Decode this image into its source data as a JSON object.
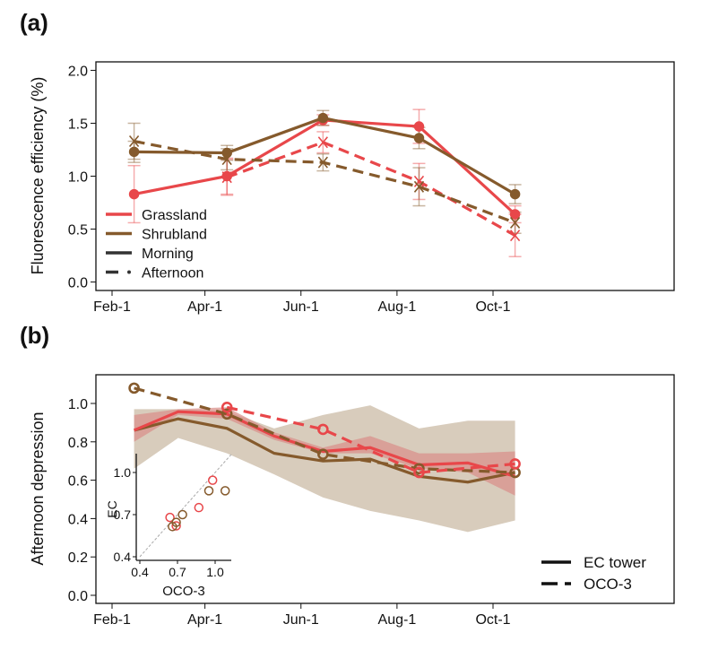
{
  "colors": {
    "grassland": "#E8474A",
    "shrubland": "#855A2C",
    "band_shrub": "#D8CCBC",
    "band_grass": "#D9928C",
    "one_to_one": "#AAAAAA"
  },
  "chart_data": [
    {
      "panel_label": "(a)",
      "type": "line",
      "ylabel": "Fluorescence efficiency (%)",
      "xlabel": "",
      "x_ticks": [
        "Feb-1",
        "Apr-1",
        "Jun-1",
        "Aug-1",
        "Oct-1"
      ],
      "y_ticks": [
        "0.0",
        "0.5",
        "1.0",
        "1.5",
        "2.0"
      ],
      "ylim": [
        -0.08,
        2.08
      ],
      "grid": false,
      "legend_position": "bottom-left",
      "legend": [
        {
          "label": "Grassland",
          "style": "solid",
          "color": "grassland"
        },
        {
          "label": "Shrubland",
          "style": "solid",
          "color": "shrubland"
        },
        {
          "label": "Morning",
          "style": "solid",
          "color": "dark"
        },
        {
          "label": "Afternoon",
          "style": "dashed",
          "color": "dark"
        }
      ],
      "series": [
        {
          "land": "grassland",
          "time": "Morning",
          "marker": "circle",
          "x": [
            "Feb-15",
            "Apr-15",
            "Jun-15",
            "Aug-15",
            "Oct-15"
          ],
          "y": [
            0.83,
            1.0,
            1.53,
            1.47,
            0.64
          ],
          "err": [
            0.27,
            0.17,
            0.05,
            0.16,
            0.08
          ]
        },
        {
          "land": "shrubland",
          "time": "Morning",
          "marker": "circle",
          "x": [
            "Feb-15",
            "Apr-15",
            "Jun-15",
            "Aug-15",
            "Oct-15"
          ],
          "y": [
            1.23,
            1.22,
            1.55,
            1.36,
            0.83
          ],
          "err": [
            0.1,
            0.07,
            0.07,
            0.1,
            0.09
          ]
        },
        {
          "land": "grassland",
          "time": "Afternoon",
          "marker": "x",
          "x": [
            "Apr-15",
            "Jun-15",
            "Aug-15",
            "Oct-15"
          ],
          "y": [
            0.99,
            1.32,
            0.95,
            0.44
          ],
          "err": [
            0.17,
            0.1,
            0.17,
            0.2
          ]
        },
        {
          "land": "shrubland",
          "time": "Afternoon",
          "marker": "x",
          "x": [
            "Feb-15",
            "Apr-15",
            "Jun-15",
            "Aug-15",
            "Oct-15"
          ],
          "y": [
            1.33,
            1.16,
            1.13,
            0.9,
            0.56
          ],
          "err": [
            0.17,
            0.1,
            0.08,
            0.18,
            0.1
          ]
        }
      ]
    },
    {
      "panel_label": "(b)",
      "type": "line",
      "ylabel": "Afternoon depression",
      "xlabel": "",
      "x_ticks": [
        "Feb-1",
        "Apr-1",
        "Jun-1",
        "Aug-1",
        "Oct-1"
      ],
      "y_ticks": [
        "0.0",
        "0.2",
        "0.4",
        "0.6",
        "0.8",
        "1.0"
      ],
      "ylim": [
        -0.04,
        1.15
      ],
      "grid": false,
      "legend_position": "bottom-right",
      "legend": [
        {
          "label": "EC tower",
          "style": "solid"
        },
        {
          "label": "OCO-3",
          "style": "dashed"
        }
      ],
      "ec_x": [
        "Feb-15",
        "Mar-15",
        "Apr-15",
        "May-15",
        "Jun-15",
        "Jul-15",
        "Aug-15",
        "Sep-15",
        "Oct-15"
      ],
      "ec_series": [
        {
          "land": "shrubland",
          "y": [
            0.86,
            0.92,
            0.87,
            0.74,
            0.7,
            0.71,
            0.62,
            0.59,
            0.64
          ],
          "band_upper": [
            0.97,
            0.97,
            0.96,
            0.87,
            0.94,
            0.99,
            0.87,
            0.91,
            0.91
          ],
          "band_lower": [
            0.66,
            0.82,
            0.74,
            0.63,
            0.51,
            0.44,
            0.39,
            0.33,
            0.39
          ]
        },
        {
          "land": "grassland",
          "y": [
            0.86,
            0.957,
            0.945,
            0.83,
            0.75,
            0.77,
            0.68,
            0.69,
            0.62
          ],
          "band_upper": [
            0.94,
            0.97,
            0.98,
            0.85,
            0.77,
            0.83,
            0.74,
            0.74,
            0.75
          ],
          "band_lower": [
            0.8,
            0.94,
            0.92,
            0.81,
            0.74,
            0.74,
            0.66,
            0.64,
            0.52
          ]
        }
      ],
      "oco_series": [
        {
          "land": "shrubland",
          "x": [
            "Feb-15",
            "Apr-15",
            "Jun-15",
            "Aug-15",
            "Oct-15"
          ],
          "y": [
            1.08,
            0.945,
            0.735,
            0.66,
            0.64
          ]
        },
        {
          "land": "grassland",
          "x": [
            "Apr-15",
            "Jun-15",
            "Aug-15",
            "Oct-15"
          ],
          "y": [
            0.98,
            0.865,
            0.64,
            0.685
          ]
        }
      ],
      "inset": {
        "type": "scatter",
        "xlabel": "OCO-3",
        "ylabel": "EC",
        "x_ticks": [
          "0.4",
          "0.7",
          "1.0"
        ],
        "y_ticks": [
          "0.4",
          "0.7",
          "1.0"
        ],
        "xlim": [
          0.38,
          1.13
        ],
        "ylim": [
          0.38,
          1.13
        ],
        "one_to_one_line": true,
        "points": [
          {
            "land": "grassland",
            "x": 0.64,
            "y": 0.68
          },
          {
            "land": "grassland",
            "x": 0.69,
            "y": 0.62
          },
          {
            "land": "grassland",
            "x": 0.87,
            "y": 0.75
          },
          {
            "land": "grassland",
            "x": 0.98,
            "y": 0.945
          },
          {
            "land": "shrubland",
            "x": 0.66,
            "y": 0.615
          },
          {
            "land": "shrubland",
            "x": 0.69,
            "y": 0.645
          },
          {
            "land": "shrubland",
            "x": 0.74,
            "y": 0.7
          },
          {
            "land": "shrubland",
            "x": 0.95,
            "y": 0.87
          },
          {
            "land": "shrubland",
            "x": 1.08,
            "y": 0.87
          }
        ]
      }
    }
  ]
}
